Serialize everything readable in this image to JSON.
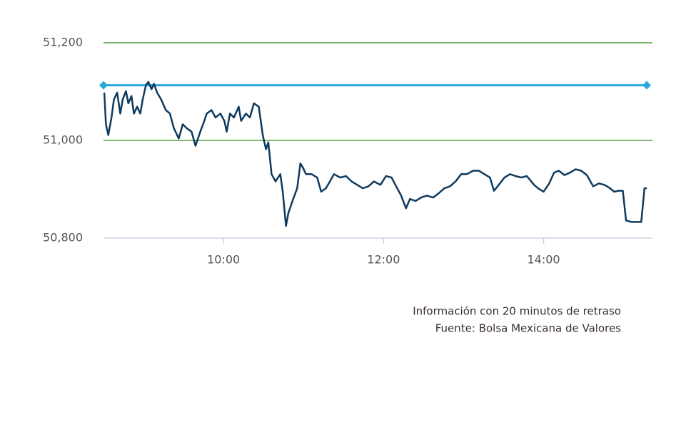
{
  "chart_data": {
    "type": "line",
    "x": [
      8.51,
      8.53,
      8.56,
      8.6,
      8.63,
      8.67,
      8.71,
      8.74,
      8.78,
      8.81,
      8.85,
      8.88,
      8.92,
      8.96,
      8.99,
      9.03,
      9.06,
      9.1,
      9.13,
      9.17,
      9.22,
      9.28,
      9.33,
      9.38,
      9.44,
      9.49,
      9.54,
      9.6,
      9.65,
      9.71,
      9.76,
      9.79,
      9.85,
      9.9,
      9.96,
      10.01,
      10.04,
      10.08,
      10.13,
      10.19,
      10.22,
      10.28,
      10.33,
      10.38,
      10.44,
      10.49,
      10.53,
      10.56,
      10.6,
      10.65,
      10.71,
      10.74,
      10.78,
      10.81,
      10.87,
      10.92,
      10.96,
      10.99,
      11.03,
      11.1,
      11.17,
      11.22,
      11.28,
      11.33,
      11.38,
      11.46,
      11.53,
      11.6,
      11.67,
      11.74,
      11.81,
      11.88,
      11.96,
      12.03,
      12.1,
      12.17,
      12.22,
      12.28,
      12.33,
      12.4,
      12.47,
      12.54,
      12.62,
      12.69,
      12.76,
      12.83,
      12.9,
      12.97,
      13.04,
      13.12,
      13.19,
      13.26,
      13.33,
      13.38,
      13.44,
      13.51,
      13.58,
      13.65,
      13.72,
      13.79,
      13.88,
      13.93,
      14.0,
      14.07,
      14.13,
      14.19,
      14.26,
      14.33,
      14.4,
      14.47,
      14.54,
      14.62,
      14.69,
      14.76,
      14.83,
      14.88,
      14.94,
      14.99,
      15.03,
      15.1,
      15.17,
      15.22,
      15.26,
      15.29
    ],
    "series": [
      {
        "color": "#0e3a5e",
        "values": [
          51098,
          51033,
          51011,
          51047,
          51084,
          51098,
          51055,
          51084,
          51101,
          51076,
          51091,
          51055,
          51069,
          51055,
          51084,
          51113,
          51120,
          51105,
          51116,
          51098,
          51084,
          51062,
          51055,
          51025,
          51004,
          51033,
          51025,
          51018,
          50989,
          51018,
          51040,
          51055,
          51062,
          51047,
          51055,
          51040,
          51018,
          51055,
          51047,
          51069,
          51040,
          51055,
          51047,
          51076,
          51069,
          51011,
          50982,
          50996,
          50931,
          50916,
          50931,
          50895,
          50825,
          50851,
          50880,
          50902,
          50953,
          50945,
          50931,
          50931,
          50924,
          50895,
          50902,
          50916,
          50931,
          50924,
          50927,
          50916,
          50909,
          50902,
          50906,
          50916,
          50909,
          50927,
          50924,
          50902,
          50887,
          50861,
          50880,
          50876,
          50883,
          50887,
          50883,
          50892,
          50902,
          50906,
          50916,
          50931,
          50931,
          50938,
          50938,
          50931,
          50924,
          50897,
          50909,
          50924,
          50931,
          50927,
          50924,
          50927,
          50909,
          50902,
          50895,
          50912,
          50934,
          50938,
          50929,
          50934,
          50941,
          50938,
          50929,
          50906,
          50912,
          50909,
          50902,
          50895,
          50897,
          50897,
          50836,
          50833,
          50833,
          50833,
          50902,
          50902
        ]
      }
    ],
    "reference_line": 51113,
    "reference_color": "#29a9dc",
    "xlim": [
      8.5,
      15.36
    ],
    "ylim": [
      50800,
      51200
    ],
    "xticks": [
      {
        "value": 10,
        "label": "10:00"
      },
      {
        "value": 12,
        "label": "12:00"
      },
      {
        "value": 14,
        "label": "14:00"
      }
    ],
    "yticks": [
      {
        "value": 50800,
        "label": "50,800"
      },
      {
        "value": 51000,
        "label": "51,000"
      },
      {
        "value": 51200,
        "label": "51,200"
      }
    ],
    "grid": true,
    "grid_color": "#2e8b1e",
    "notes": [
      "Información con 20 minutos de retraso",
      "Fuente: Bolsa Mexicana de Valores"
    ]
  }
}
